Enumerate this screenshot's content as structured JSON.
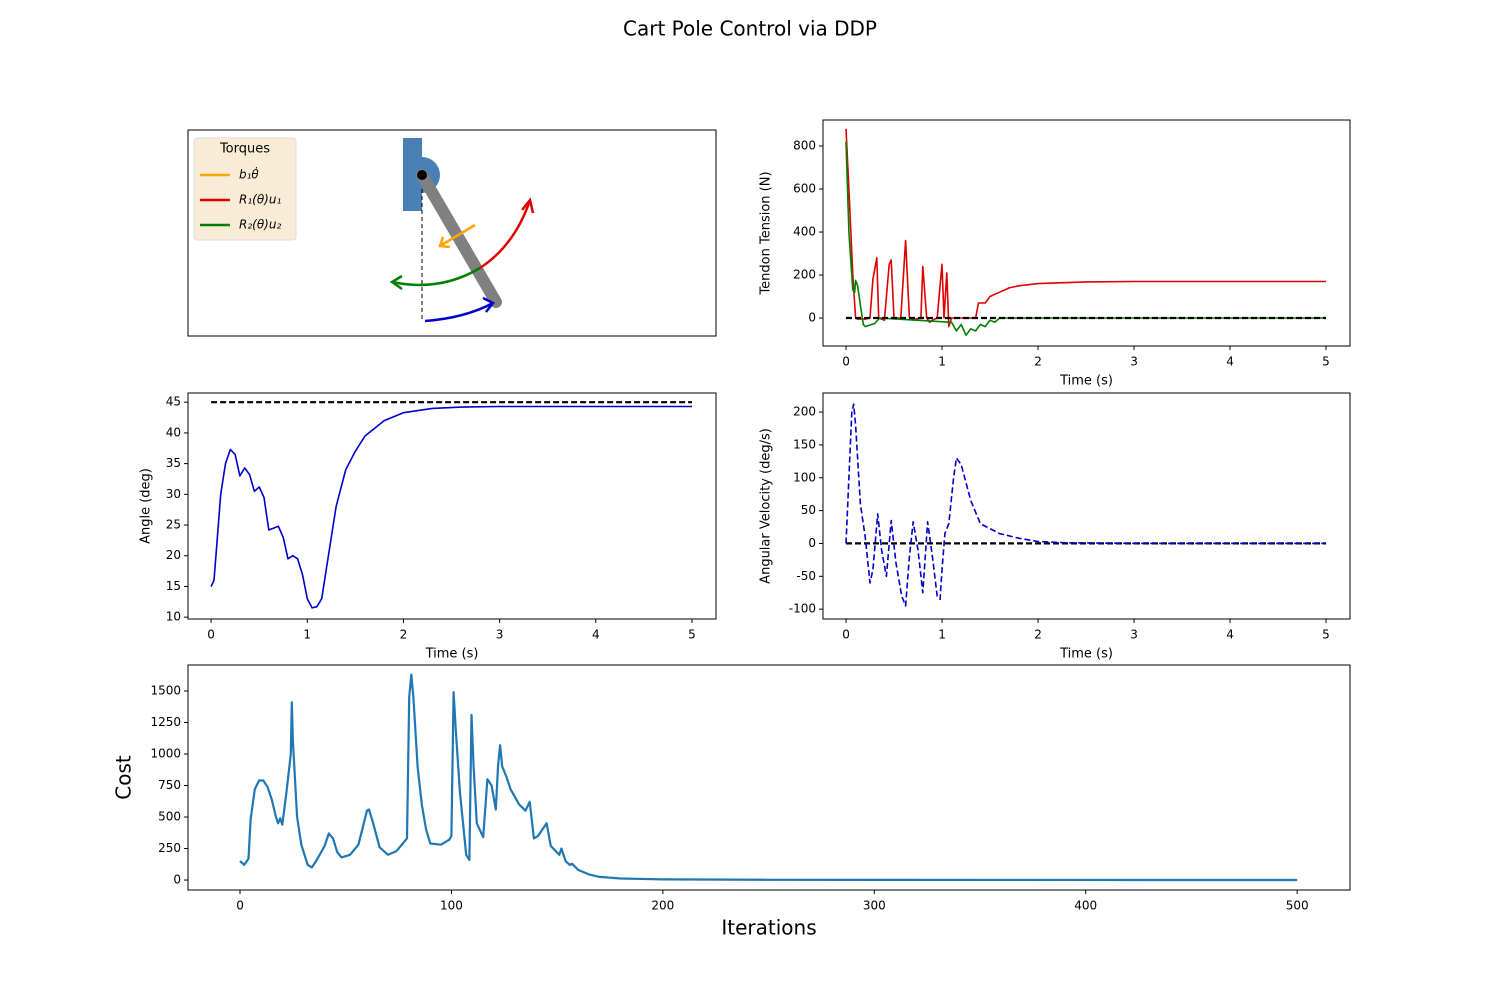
{
  "title": "Cart Pole Control via DDP",
  "chart_data": [
    {
      "type": "diagram",
      "legend_title": "Torques",
      "series": [
        {
          "name": "b₁θ̇",
          "color": "orange"
        },
        {
          "name": "R₁(θ)u₁",
          "color": "#e00000"
        },
        {
          "name": "R₂(θ)u₂",
          "color": "green"
        }
      ]
    },
    {
      "type": "line",
      "x_label": "Time (s)",
      "y_label": "Tendon Tension (N)",
      "xlim": [
        -0.24,
        5.25
      ],
      "xticks": [
        0,
        1,
        2,
        3,
        4,
        5
      ],
      "ylim": [
        -130,
        921
      ],
      "yticks": [
        0,
        200,
        400,
        600,
        800
      ],
      "series": [
        {
          "color": "#e00000",
          "dash": false,
          "x": [
            0,
            0.03,
            0.07,
            0.1,
            0.12,
            0.2,
            0.25,
            0.28,
            0.32,
            0.34,
            0.4,
            0.45,
            0.47,
            0.5,
            0.57,
            0.62,
            0.66,
            0.72,
            0.78,
            0.8,
            0.84,
            0.87,
            0.9,
            0.95,
            1.0,
            1.02,
            1.05,
            1.07,
            1.1,
            1.35,
            1.38,
            1.45,
            1.5,
            1.6,
            1.7,
            1.8,
            2.0,
            2.5,
            3,
            4,
            5
          ],
          "values": [
            880,
            600,
            200,
            0,
            -5,
            -5,
            0,
            180,
            280,
            0,
            -10,
            250,
            270,
            0,
            0,
            360,
            0,
            -5,
            0,
            240,
            0,
            -20,
            -10,
            0,
            250,
            0,
            210,
            -40,
            0,
            0,
            70,
            70,
            100,
            120,
            140,
            150,
            160,
            168,
            170,
            170,
            170
          ]
        },
        {
          "color": "green",
          "dash": false,
          "x": [
            0,
            0.03,
            0.07,
            0.09,
            0.1,
            0.12,
            0.15,
            0.18,
            0.2,
            0.3,
            0.35,
            1.1,
            1.15,
            1.2,
            1.25,
            1.3,
            1.35,
            1.4,
            1.45,
            1.5,
            1.55,
            1.6,
            1.65,
            5
          ],
          "values": [
            820,
            400,
            130,
            120,
            175,
            150,
            60,
            -30,
            -40,
            -25,
            0,
            -20,
            -60,
            -30,
            -80,
            -50,
            -60,
            -30,
            -40,
            -10,
            -20,
            0,
            0,
            0
          ]
        },
        {
          "color": "black",
          "dash": true,
          "x": [
            0,
            5
          ],
          "values": [
            0,
            0
          ]
        }
      ]
    },
    {
      "type": "line",
      "x_label": "Time (s)",
      "y_label": "Angle (deg)",
      "xlim": [
        -0.24,
        5.25
      ],
      "xticks": [
        0,
        1,
        2,
        3,
        4,
        5
      ],
      "ylim": [
        9.7,
        46.5
      ],
      "yticks": [
        10,
        15,
        20,
        25,
        30,
        35,
        40,
        45
      ],
      "series": [
        {
          "color": "#0000cc",
          "dash": false,
          "x": [
            0,
            0.03,
            0.06,
            0.1,
            0.15,
            0.2,
            0.25,
            0.3,
            0.35,
            0.4,
            0.45,
            0.5,
            0.55,
            0.6,
            0.65,
            0.7,
            0.75,
            0.8,
            0.85,
            0.9,
            0.95,
            1.0,
            1.05,
            1.1,
            1.15,
            1.2,
            1.3,
            1.4,
            1.5,
            1.6,
            1.8,
            2.0,
            2.3,
            2.6,
            3,
            4,
            5
          ],
          "values": [
            15,
            16,
            22,
            30,
            35,
            37.3,
            36.5,
            33,
            34.3,
            33.2,
            30.5,
            31.2,
            29.5,
            24.2,
            24.5,
            24.8,
            23,
            19.5,
            20,
            19.5,
            17,
            13,
            11.5,
            11.7,
            13,
            18,
            28,
            34,
            37,
            39.5,
            42,
            43.3,
            44,
            44.2,
            44.3,
            44.3,
            44.3
          ]
        },
        {
          "color": "black",
          "dash": true,
          "x": [
            0,
            5
          ],
          "values": [
            45,
            45
          ]
        }
      ]
    },
    {
      "type": "line",
      "x_label": "Time (s)",
      "y_label": "Angular Velocity (deg/s)",
      "xlim": [
        -0.24,
        5.25
      ],
      "xticks": [
        0,
        1,
        2,
        3,
        4,
        5
      ],
      "ylim": [
        -115,
        229
      ],
      "yticks": [
        -100,
        -50,
        0,
        50,
        100,
        150,
        200
      ],
      "series": [
        {
          "color": "black",
          "dash": true,
          "x": [
            0,
            5
          ],
          "values": [
            0,
            0
          ]
        },
        {
          "color": "#0000cc",
          "dash": true,
          "x": [
            0,
            0.03,
            0.06,
            0.08,
            0.1,
            0.15,
            0.2,
            0.25,
            0.28,
            0.33,
            0.37,
            0.42,
            0.47,
            0.52,
            0.58,
            0.62,
            0.66,
            0.7,
            0.75,
            0.8,
            0.85,
            0.9,
            0.95,
            0.98,
            1.0,
            1.03,
            1.07,
            1.12,
            1.15,
            1.2,
            1.3,
            1.4,
            1.6,
            1.8,
            2.0,
            2.3,
            3,
            5
          ],
          "values": [
            0,
            100,
            200,
            212,
            180,
            60,
            10,
            -60,
            -40,
            45,
            -10,
            -50,
            35,
            -30,
            -80,
            -95,
            -20,
            33,
            -10,
            -75,
            33,
            -20,
            -80,
            -85,
            -40,
            15,
            30,
            100,
            130,
            120,
            65,
            30,
            15,
            8,
            3,
            1,
            0,
            0
          ]
        }
      ]
    },
    {
      "type": "line",
      "x_label": "Iterations",
      "y_label": "Cost",
      "xlim": [
        -24.6,
        525
      ],
      "xticks": [
        0,
        100,
        200,
        300,
        400,
        500
      ],
      "ylim": [
        -79,
        1706
      ],
      "yticks": [
        0,
        250,
        500,
        750,
        1000,
        1250,
        1500
      ],
      "series": [
        {
          "color": "#1f77b4",
          "dash": false,
          "x": [
            0,
            2,
            4,
            5,
            7,
            9,
            11,
            13,
            15,
            17,
            18,
            19,
            20,
            22,
            24,
            24.5,
            25,
            27,
            29,
            32,
            34,
            36,
            40,
            42,
            44,
            46,
            48,
            52,
            56,
            59,
            60,
            61,
            63,
            66,
            70,
            74,
            79,
            80,
            81,
            82,
            84,
            86,
            88,
            90,
            95,
            99,
            100,
            101,
            102,
            104,
            107,
            108.5,
            109.5,
            110.5,
            112,
            115,
            117,
            119,
            121,
            122,
            123,
            124,
            126,
            128,
            132,
            135,
            137,
            139,
            141,
            145,
            147,
            151,
            152,
            154,
            156,
            157,
            160,
            165,
            170,
            180,
            200,
            250,
            300,
            500
          ],
          "values": [
            150,
            120,
            170,
            480,
            720,
            790,
            790,
            740,
            640,
            500,
            450,
            490,
            440,
            700,
            1000,
            1410,
            1100,
            500,
            280,
            120,
            100,
            150,
            270,
            370,
            330,
            220,
            180,
            200,
            280,
            480,
            550,
            560,
            450,
            260,
            200,
            230,
            330,
            1450,
            1630,
            1450,
            900,
            600,
            400,
            290,
            280,
            320,
            350,
            1490,
            1200,
            700,
            200,
            160,
            1310,
            900,
            450,
            340,
            800,
            750,
            560,
            900,
            1070,
            900,
            820,
            720,
            600,
            550,
            620,
            330,
            350,
            450,
            270,
            200,
            250,
            150,
            120,
            130,
            80,
            45,
            25,
            12,
            5,
            2,
            1,
            0
          ]
        }
      ]
    }
  ]
}
